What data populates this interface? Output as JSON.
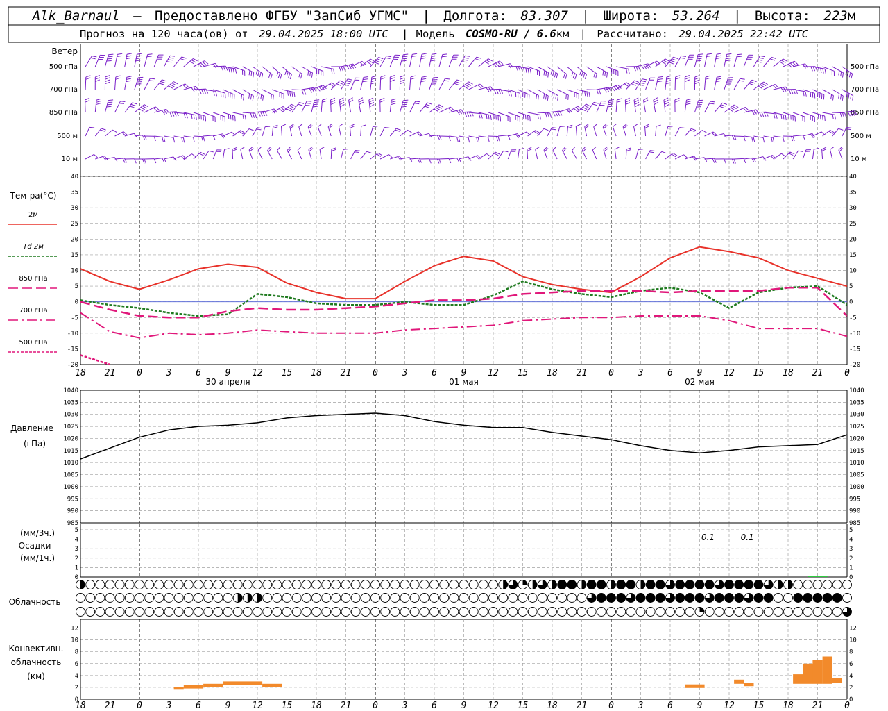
{
  "header": {
    "station": "Alk_Barnaul",
    "dash": "—",
    "provider": "Предоставлено ФГБУ \"ЗапСиб УГМС\"",
    "lon_label": "Долгота:",
    "lon": "83.307",
    "lat_label": "Широта:",
    "lat": "53.264",
    "alt_label": "Высота:",
    "alt": "223",
    "alt_unit": "м",
    "forecast_label": "Прогноз на 120 часа(ов) от",
    "base_time": "29.04.2025 18:00 UTC",
    "model_label": "Модель",
    "model": "COSMO-RU / 6.6",
    "model_unit": "км",
    "calc_label": "Рассчитано:",
    "calc_time": "29.04.2025 22:42 UTC"
  },
  "hour_ticks": [
    "18",
    "21",
    "0",
    "3",
    "6",
    "9",
    "12",
    "15",
    "18",
    "21",
    "0",
    "3",
    "6",
    "9",
    "12",
    "15",
    "18",
    "21",
    "0",
    "3",
    "6",
    "9",
    "12",
    "15",
    "18",
    "21",
    "0"
  ],
  "dates": [
    {
      "label": "30 апреля",
      "hour": 15
    },
    {
      "label": "01 мая",
      "hour": 39
    },
    {
      "label": "02 мая",
      "hour": 63
    }
  ],
  "day_boundaries": [
    6,
    30,
    54
  ],
  "wind": {
    "title": "Ветер",
    "levels": [
      "500 гПа",
      "700 гПа",
      "850 гПа",
      "500 м",
      "10 м"
    ],
    "color": "#7a1fc9"
  },
  "temperature": {
    "title": "Тем-ра(°C)",
    "ylim": [
      -20,
      40
    ],
    "yticks": [
      -20,
      -15,
      -10,
      -5,
      0,
      5,
      10,
      15,
      20,
      25,
      30,
      35,
      40
    ],
    "legend": [
      {
        "label": "2м",
        "color": "#e8322a",
        "style": "solid"
      },
      {
        "label": "Td  2м",
        "color": "#1f7a1f",
        "style": "dash-short"
      },
      {
        "label": "850 гПа",
        "color": "#e0177a",
        "style": "dash-long"
      },
      {
        "label": "700 гПа",
        "color": "#e0177a",
        "style": "dash-dot"
      },
      {
        "label": "500 гПа",
        "color": "#e0177a",
        "style": "dash-short"
      }
    ]
  },
  "pressure": {
    "title": "Давление",
    "unit": "(гПа)",
    "ylim": [
      985,
      1040
    ],
    "yticks": [
      985,
      990,
      995,
      1000,
      1005,
      1010,
      1015,
      1020,
      1025,
      1030,
      1035,
      1040
    ]
  },
  "precip": {
    "unit3": "(мм/3ч.)",
    "title": "Осадки",
    "unit1": "(мм/1ч.)",
    "ylim": [
      0,
      5
    ],
    "yticks": [
      0,
      1,
      2,
      3,
      4,
      5
    ],
    "annotations": [
      {
        "hour": 63,
        "text": "0.1"
      },
      {
        "hour": 67,
        "text": "0.1"
      }
    ],
    "color": "#2ecc40"
  },
  "clouds": {
    "title": "Облачность"
  },
  "convective": {
    "title1": "Конвективн.",
    "title2": "облачность",
    "title3": "(км)",
    "ylim": [
      0,
      13
    ],
    "yticks": [
      0,
      2,
      4,
      6,
      8,
      10,
      12
    ],
    "color": "#f28a2b"
  },
  "chart_data": [
    {
      "type": "line",
      "panel": "temperature",
      "x_unit": "hours from 29.04.2025 18:00 UTC",
      "ylabel": "Тем-ра(°C)",
      "ylim": [
        -20,
        40
      ],
      "grid": true,
      "series": [
        {
          "name": "2м",
          "x": [
            0,
            3,
            6,
            9,
            12,
            15,
            18,
            21,
            24,
            27,
            30,
            33,
            36,
            39,
            42,
            45,
            48,
            51,
            54,
            57,
            60,
            63,
            66,
            69,
            72,
            75,
            78
          ],
          "values": [
            10.5,
            6.5,
            4,
            7,
            10.5,
            12,
            11,
            6,
            3,
            1,
            1,
            6.5,
            11.5,
            14.5,
            13,
            8,
            5.5,
            4,
            3,
            8,
            14,
            17.5,
            16,
            14,
            10,
            7.5,
            5
          ]
        },
        {
          "name": "Td  2м",
          "x": [
            0,
            3,
            6,
            9,
            12,
            15,
            18,
            21,
            24,
            27,
            30,
            33,
            36,
            39,
            42,
            45,
            48,
            51,
            54,
            57,
            60,
            63,
            66,
            69,
            72,
            75,
            78
          ],
          "values": [
            0.5,
            -1,
            -2,
            -3.5,
            -4.5,
            -4,
            2.5,
            1.5,
            -0.5,
            -1,
            -1,
            0,
            -1,
            -1,
            2,
            6.5,
            4,
            2.5,
            1.5,
            3.5,
            4.5,
            3,
            -2,
            3,
            4.5,
            5,
            -1
          ]
        },
        {
          "name": "850 гПа",
          "x": [
            0,
            3,
            6,
            9,
            12,
            15,
            18,
            21,
            24,
            27,
            30,
            33,
            36,
            39,
            42,
            45,
            48,
            51,
            54,
            57,
            60,
            63,
            66,
            69,
            72,
            75,
            78
          ],
          "values": [
            0,
            -2.5,
            -4.5,
            -5,
            -5,
            -3,
            -2,
            -2.5,
            -2.5,
            -2,
            -1.5,
            -0.5,
            0.5,
            0.5,
            1,
            2.5,
            3,
            3.5,
            3.5,
            3.5,
            3,
            3.5,
            3.5,
            3.5,
            4.5,
            4.5,
            -4.5
          ]
        },
        {
          "name": "700 гПа",
          "x": [
            0,
            3,
            6,
            9,
            12,
            15,
            18,
            21,
            24,
            27,
            30,
            33,
            36,
            39,
            42,
            45,
            48,
            51,
            54,
            57,
            60,
            63,
            66,
            69,
            72,
            75,
            78
          ],
          "values": [
            -3.5,
            -9.5,
            -11.5,
            -10,
            -10.5,
            -10,
            -9,
            -9.5,
            -10,
            -10,
            -10,
            -9,
            -8.5,
            -8,
            -7.5,
            -6,
            -5.5,
            -5,
            -5,
            -4.5,
            -4.5,
            -4.5,
            -6,
            -8.5,
            -8.5,
            -8.5,
            -11
          ]
        },
        {
          "name": "500 гПа",
          "x": [
            0,
            1.5,
            3
          ],
          "values": [
            -17,
            -18.5,
            -20
          ]
        }
      ]
    },
    {
      "type": "line",
      "panel": "pressure",
      "x_unit": "hours from 29.04.2025 18:00 UTC",
      "ylabel": "Давление",
      "ylim": [
        985,
        1040
      ],
      "grid": true,
      "series": [
        {
          "name": "",
          "x": [
            0,
            3,
            6,
            9,
            12,
            15,
            18,
            21,
            24,
            27,
            30,
            33,
            36,
            39,
            42,
            45,
            48,
            51,
            54,
            57,
            60,
            63,
            66,
            69,
            72,
            75,
            78
          ],
          "values": [
            1011.5,
            1016,
            1020.5,
            1023.5,
            1025,
            1025.5,
            1026.5,
            1028.5,
            1029.5,
            1030,
            1030.5,
            1029.5,
            1027,
            1025.5,
            1024.5,
            1024.5,
            1022.5,
            1021,
            1019.5,
            1017,
            1015,
            1014,
            1015,
            1016.5,
            1017,
            1017.5,
            1021.5
          ]
        }
      ]
    },
    {
      "type": "bar",
      "panel": "precipitation",
      "ylim": [
        0,
        5
      ],
      "x": [
        74.5,
        75.5
      ],
      "values": [
        0.1,
        0.1
      ]
    },
    {
      "type": "bar",
      "panel": "convective",
      "ylabel": "(км)",
      "ylim": [
        0,
        13
      ],
      "bars": [
        {
          "x0": 9.5,
          "x1": 10.5,
          "base": 1.6,
          "top": 2.0
        },
        {
          "x0": 10.5,
          "x1": 12.5,
          "base": 1.8,
          "top": 2.4
        },
        {
          "x0": 12.5,
          "x1": 14.5,
          "base": 2.0,
          "top": 2.6
        },
        {
          "x0": 14.5,
          "x1": 18.5,
          "base": 2.4,
          "top": 3.0
        },
        {
          "x0": 18.5,
          "x1": 20.5,
          "base": 2.0,
          "top": 2.6
        },
        {
          "x0": 61.5,
          "x1": 63.5,
          "base": 1.9,
          "top": 2.5
        },
        {
          "x0": 66.5,
          "x1": 67.5,
          "base": 2.6,
          "top": 3.3
        },
        {
          "x0": 67.5,
          "x1": 68.5,
          "base": 2.2,
          "top": 2.8
        },
        {
          "x0": 72.5,
          "x1": 73.5,
          "base": 2.6,
          "top": 4.2
        },
        {
          "x0": 73.5,
          "x1": 74.5,
          "base": 2.6,
          "top": 6.0
        },
        {
          "x0": 74.5,
          "x1": 75.5,
          "base": 2.6,
          "top": 6.6
        },
        {
          "x0": 75.5,
          "x1": 76.5,
          "base": 2.6,
          "top": 7.2
        },
        {
          "x0": 76.5,
          "x1": 77.5,
          "base": 2.8,
          "top": 3.6
        }
      ]
    }
  ]
}
